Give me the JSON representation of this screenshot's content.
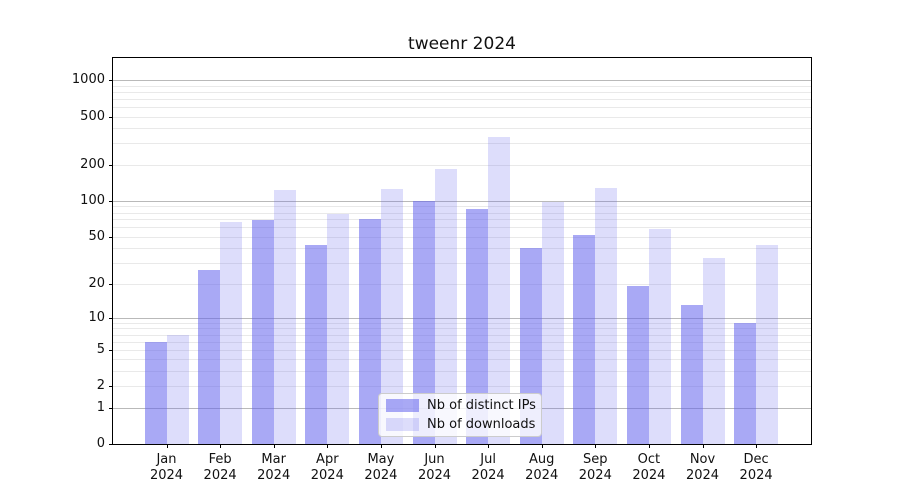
{
  "chart_data": {
    "type": "bar",
    "title": "tweenr 2024",
    "categories": [
      "Jan",
      "Feb",
      "Mar",
      "Apr",
      "May",
      "Jun",
      "Jul",
      "Aug",
      "Sep",
      "Oct",
      "Nov",
      "Dec"
    ],
    "x_year_label": "2024",
    "series": [
      {
        "name": "Nb of distinct IPs",
        "color": "rgba(99,99,237,0.55)",
        "values": [
          6,
          26,
          69,
          43,
          71,
          100,
          86,
          40,
          52,
          19,
          13,
          9
        ]
      },
      {
        "name": "Nb of downloads",
        "color": "rgba(99,99,237,0.22)",
        "values": [
          7,
          67,
          123,
          78,
          126,
          184,
          340,
          98,
          128,
          58,
          33,
          43
        ]
      }
    ],
    "y_axis": {
      "scale": "log1p",
      "tick_labels": [
        0,
        1,
        2,
        5,
        10,
        20,
        50,
        100,
        200,
        500,
        1000
      ],
      "max": 1500
    },
    "grid": {
      "enabled": true,
      "major_values": [
        1,
        10,
        100,
        1000
      ],
      "minor_multiples": [
        2,
        3,
        4,
        5,
        6,
        7,
        8,
        9
      ]
    },
    "legend": {
      "position": "lower center",
      "items": [
        "Nb of distinct IPs",
        "Nb of downloads"
      ]
    },
    "colors": {
      "bar_dark": "rgba(99,99,237,0.55)",
      "bar_light": "rgba(99,99,237,0.22)",
      "grid_major": "#b9b9b9",
      "grid_minor": "#e9e9e9",
      "spine": "#000000",
      "background": "#ffffff"
    }
  }
}
